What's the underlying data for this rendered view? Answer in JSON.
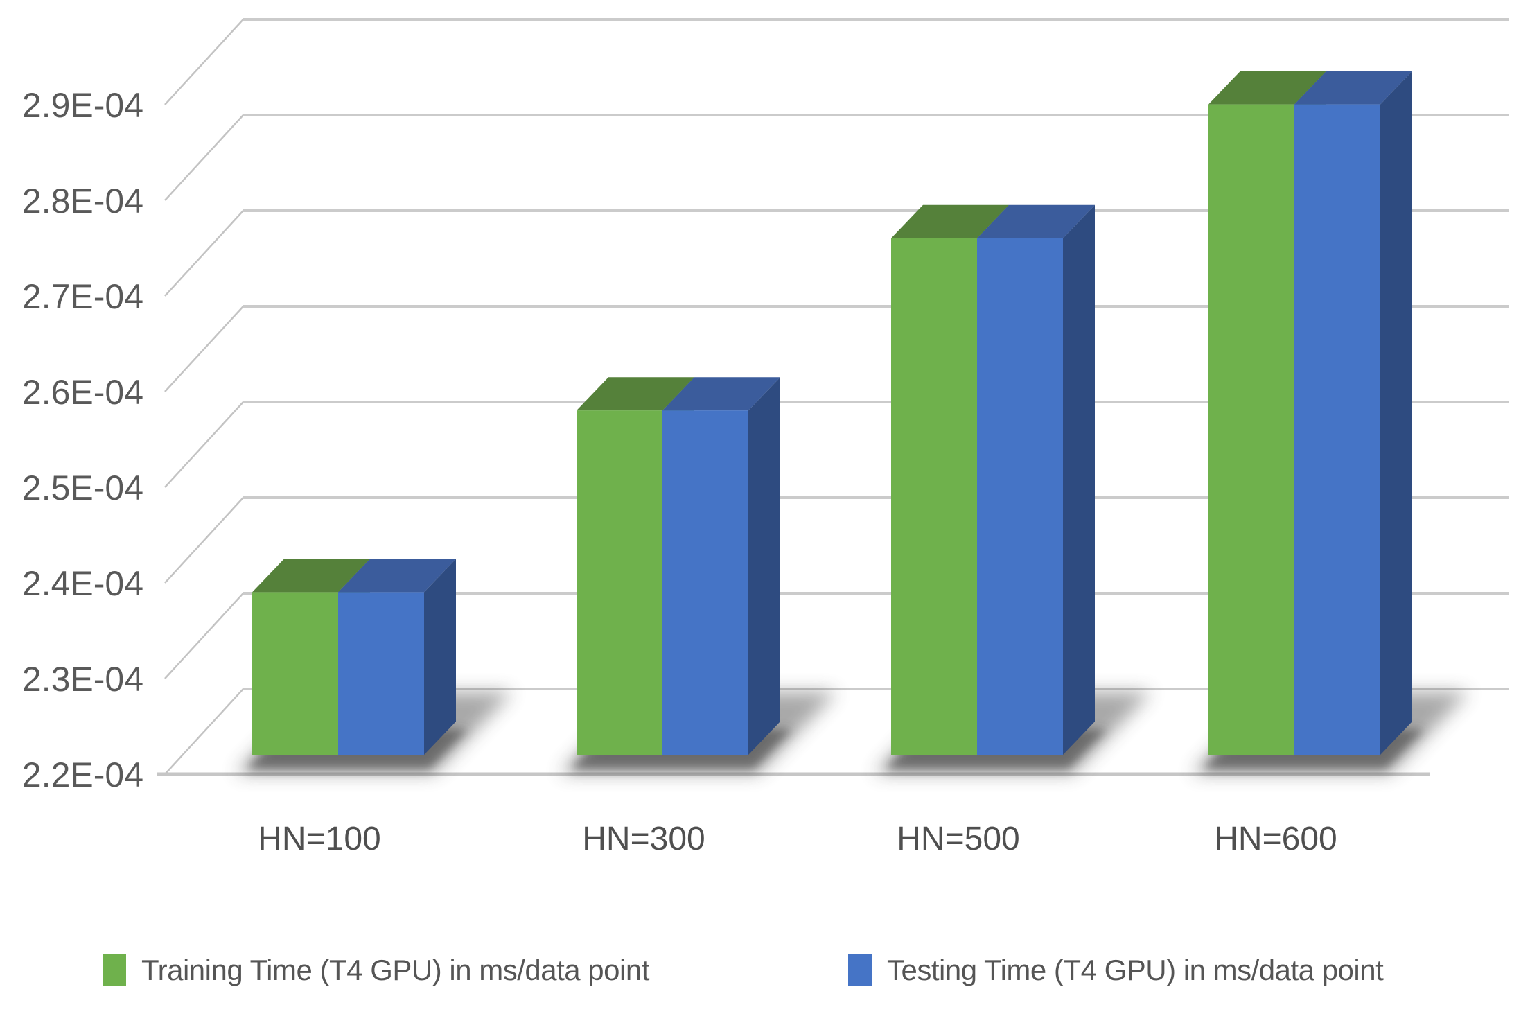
{
  "chart_data": {
    "type": "bar",
    "projection": "3d",
    "title": "",
    "categories": [
      "HN=100",
      "HN=300",
      "HN=500",
      "HN=600"
    ],
    "series": [
      {
        "name": "Training Time (T4 GPU) in ms/data point",
        "color": "#6fb14c",
        "face_colors": {
          "front": "#6fb14c",
          "top": "#55813a",
          "side": "#4e7834"
        },
        "values": [
          0.000237,
          0.000256,
          0.000274,
          0.000288
        ]
      },
      {
        "name": "Testing Time (T4 GPU) in ms/data point",
        "color": "#4574c6",
        "face_colors": {
          "front": "#4574c6",
          "top": "#3b5c9c",
          "side": "#2e4b80"
        },
        "values": [
          0.000237,
          0.000256,
          0.000274,
          0.000288
        ]
      }
    ],
    "y_axis": {
      "min": 0.00022,
      "max": 0.00029,
      "step": 1e-05,
      "tick_labels": [
        "2.2E-04",
        "2.3E-04",
        "2.4E-04",
        "2.5E-04",
        "2.6E-04",
        "2.7E-04",
        "2.8E-04",
        "2.9E-04"
      ],
      "label_color": "#595959"
    },
    "x_axis": {
      "label_color": "#4f4f4f"
    },
    "grid": true,
    "grid_color": "#cbcbcb",
    "legend_position": "bottom",
    "xlabel": "",
    "ylabel": ""
  }
}
